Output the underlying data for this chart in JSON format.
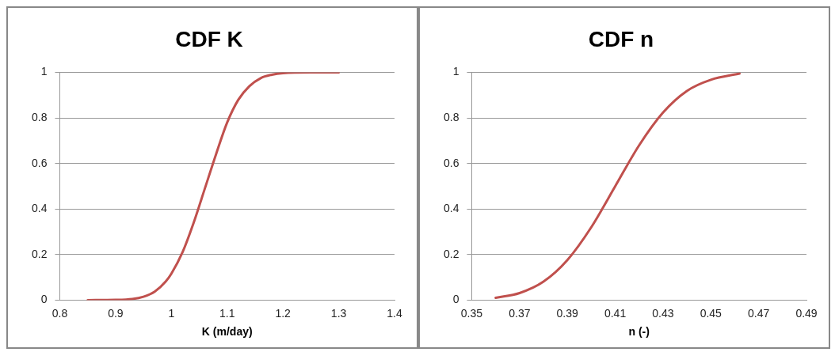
{
  "chart_data": [
    {
      "type": "line",
      "title": "CDF K",
      "xlabel": "K (m/day)",
      "x": [
        0.85,
        0.9,
        0.93,
        0.95,
        0.97,
        0.99,
        1.0,
        1.02,
        1.04,
        1.06,
        1.08,
        1.1,
        1.12,
        1.14,
        1.16,
        1.18,
        1.2,
        1.25,
        1.3
      ],
      "series": [
        {
          "color": "#c0504d",
          "values": [
            0,
            0.001,
            0.005,
            0.015,
            0.037,
            0.082,
            0.116,
            0.21,
            0.34,
            0.49,
            0.64,
            0.78,
            0.88,
            0.94,
            0.975,
            0.99,
            0.997,
            1,
            1
          ]
        }
      ],
      "xlim": [
        0.8,
        1.4
      ],
      "xticks": [
        0.8,
        0.9,
        1,
        1.1,
        1.2,
        1.3,
        1.4
      ],
      "ylim": [
        0,
        1
      ],
      "yticks": [
        0,
        0.2,
        0.4,
        0.6,
        0.8,
        1
      ],
      "grid": "y",
      "legend": false,
      "marker": "none"
    },
    {
      "type": "line",
      "title": "CDF n",
      "xlabel": "n (-)",
      "x": [
        0.36,
        0.37,
        0.38,
        0.39,
        0.4,
        0.41,
        0.42,
        0.43,
        0.44,
        0.45,
        0.462
      ],
      "series": [
        {
          "color": "#c0504d",
          "values": [
            0.01,
            0.031,
            0.081,
            0.176,
            0.32,
            0.5,
            0.68,
            0.824,
            0.919,
            0.968,
            0.995
          ]
        }
      ],
      "xlim": [
        0.35,
        0.49
      ],
      "xticks": [
        0.35,
        0.37,
        0.39,
        0.41,
        0.43,
        0.45,
        0.47,
        0.49
      ],
      "ylim": [
        0,
        1
      ],
      "yticks": [
        0,
        0.2,
        0.4,
        0.6,
        0.8,
        1
      ],
      "grid": "y",
      "legend": false,
      "marker": "none"
    }
  ]
}
